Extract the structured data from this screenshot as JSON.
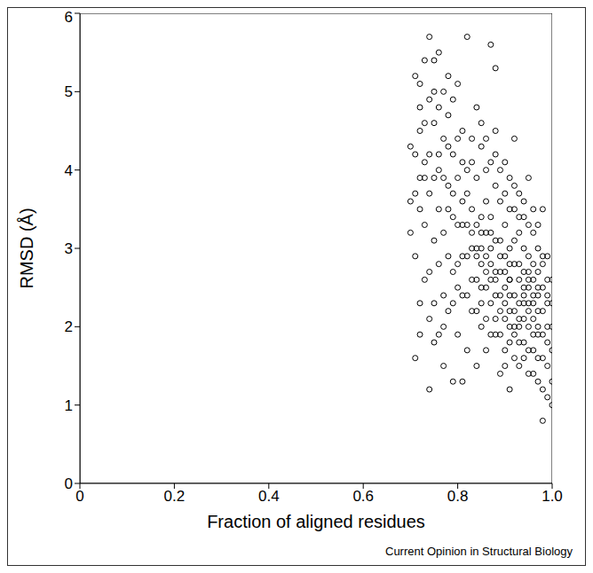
{
  "chart_data": {
    "type": "scatter",
    "xlabel": "Fraction of aligned residues",
    "ylabel": "RMSD (Å)",
    "annotation": "Current Opinion in Structural Biology",
    "color": "#000000",
    "marker": "open_circle",
    "grid": false,
    "xlim": [
      0,
      1
    ],
    "xticks": [
      0,
      0.2,
      0.4,
      0.6,
      0.8,
      {
        "value": 1,
        "label": "1.0"
      }
    ],
    "ylim": [
      0,
      6
    ],
    "yticks": [
      0,
      1,
      2,
      3,
      4,
      5,
      6
    ],
    "x": [
      0.7,
      0.7,
      0.71,
      0.71,
      0.71,
      0.72,
      0.72,
      0.72,
      0.72,
      0.73,
      0.73,
      0.73,
      0.73,
      0.74,
      0.74,
      0.74,
      0.74,
      0.75,
      0.75,
      0.75,
      0.75,
      0.76,
      0.76,
      0.76,
      0.76,
      0.77,
      0.77,
      0.77,
      0.77,
      0.78,
      0.78,
      0.78,
      0.78,
      0.79,
      0.79,
      0.79,
      0.79,
      0.8,
      0.8,
      0.8,
      0.8,
      0.81,
      0.81,
      0.81,
      0.81,
      0.82,
      0.82,
      0.82,
      0.82,
      0.83,
      0.83,
      0.83,
      0.83,
      0.84,
      0.84,
      0.84,
      0.84,
      0.85,
      0.85,
      0.85,
      0.85,
      0.86,
      0.86,
      0.86,
      0.86,
      0.87,
      0.87,
      0.87,
      0.87,
      0.88,
      0.88,
      0.88,
      0.88,
      0.88,
      0.89,
      0.89,
      0.89,
      0.89,
      0.9,
      0.9,
      0.9,
      0.9,
      0.9,
      0.91,
      0.91,
      0.91,
      0.91,
      0.91,
      0.92,
      0.92,
      0.92,
      0.92,
      0.92,
      0.93,
      0.93,
      0.93,
      0.93,
      0.93,
      0.94,
      0.94,
      0.94,
      0.94,
      0.94,
      0.95,
      0.95,
      0.95,
      0.95,
      0.95,
      0.96,
      0.96,
      0.96,
      0.96,
      0.97,
      0.97,
      0.97,
      0.97,
      0.98,
      0.98,
      0.98,
      0.98,
      0.99,
      0.99,
      0.99,
      1.0,
      1.0,
      1.0,
      1.0,
      0.99,
      0.98,
      0.97,
      0.84,
      0.85,
      0.86,
      0.87,
      0.88,
      0.89,
      0.9,
      0.91,
      0.92,
      0.93,
      0.94,
      0.95,
      0.96,
      0.97,
      0.98,
      0.99,
      0.9,
      0.91,
      0.92,
      0.93,
      0.94,
      0.95,
      0.96,
      0.97,
      0.89,
      0.88,
      0.87,
      0.86,
      0.85,
      0.84,
      0.83,
      0.82,
      0.81,
      0.8,
      0.79,
      0.78,
      0.77,
      0.76,
      0.75,
      0.74,
      0.73,
      0.72,
      0.71,
      0.7,
      0.71,
      0.72,
      0.73,
      0.74,
      0.75,
      0.76,
      0.77,
      0.78,
      0.79,
      0.8,
      0.81,
      0.82,
      0.83,
      0.84,
      0.85,
      0.86,
      0.87,
      0.88,
      0.89,
      0.9,
      0.91,
      0.92,
      0.93,
      0.94,
      0.95,
      0.96,
      0.97,
      0.98,
      0.99,
      1.0,
      0.99,
      0.98,
      0.97,
      0.96,
      0.95,
      0.94,
      0.93,
      0.92,
      0.91,
      0.9,
      0.89,
      0.88,
      0.87,
      0.86,
      0.85,
      0.83,
      0.82,
      0.81,
      0.8,
      0.79,
      0.78,
      0.77,
      0.76,
      0.75,
      0.74,
      0.72,
      0.91,
      0.92,
      0.93,
      0.94,
      0.95,
      0.96,
      0.9,
      0.91,
      0.89,
      0.88,
      0.87,
      0.86,
      0.85,
      0.84,
      0.95,
      0.96,
      0.97,
      0.98,
      0.99,
      1.0
    ],
    "values": [
      3.6,
      4.3,
      5.2,
      2.9,
      1.6,
      3.9,
      4.8,
      2.3,
      1.9,
      5.4,
      3.3,
      4.1,
      2.6,
      5.7,
      1.2,
      3.7,
      2.1,
      4.6,
      5.0,
      3.1,
      1.8,
      2.8,
      4.0,
      5.5,
      3.5,
      1.5,
      4.4,
      2.4,
      3.2,
      5.2,
      3.8,
      2.2,
      4.7,
      1.3,
      3.4,
      2.7,
      4.2,
      5.1,
      3.9,
      2.5,
      1.9,
      1.3,
      3.3,
      4.5,
      2.9,
      5.7,
      3.7,
      2.4,
      1.7,
      4.1,
      3.0,
      2.6,
      3.5,
      4.8,
      2.2,
      3.9,
      1.5,
      3.2,
      2.8,
      4.3,
      2.0,
      3.6,
      2.5,
      1.7,
      4.0,
      3.0,
      5.6,
      2.3,
      3.4,
      5.3,
      2.7,
      1.9,
      3.8,
      4.5,
      2.4,
      3.1,
      1.4,
      3.6,
      2.9,
      2.1,
      4.1,
      3.3,
      1.7,
      2.6,
      3.9,
      2.2,
      3.0,
      1.2,
      2.8,
      3.5,
      2.4,
      1.9,
      4.4,
      3.2,
      2.6,
      2.0,
      3.7,
      1.5,
      2.3,
      3.0,
      2.7,
      1.8,
      3.4,
      2.2,
      2.9,
      1.4,
      3.9,
      2.5,
      2.1,
      3.2,
      1.7,
      2.6,
      2.4,
      3.0,
      1.3,
      2.0,
      2.8,
      0.8,
      3.5,
      1.9,
      2.3,
      1.5,
      2.9,
      1.3,
      2.0,
      2.6,
      1.0,
      1.1,
      1.2,
      1.6,
      3.0,
      2.5,
      2.9,
      2.6,
      3.1,
      2.7,
      2.5,
      2.8,
      3.1,
      2.8,
      2.5,
      2.7,
      2.4,
      2.7,
      2.2,
      2.6,
      2.3,
      2.4,
      2.2,
      2.3,
      2.1,
      2.0,
      1.9,
      2.2,
      2.2,
      2.4,
      2.8,
      3.2,
      3.4,
      3.3,
      3.2,
      3.3,
      3.6,
      3.3,
      3.7,
      3.5,
      3.9,
      4.2,
      3.9,
      4.2,
      3.9,
      3.5,
      4.2,
      3.2,
      3.7,
      4.5,
      4.6,
      2.7,
      2.3,
      1.9,
      2.0,
      2.9,
      2.3,
      2.8,
      2.4,
      2.9,
      2.2,
      2.6,
      2.3,
      2.1,
      1.9,
      2.1,
      1.9,
      1.5,
      1.8,
      1.6,
      1.8,
      1.6,
      1.7,
      1.4,
      1.9,
      1.6,
      1.8,
      1.7,
      2.0,
      2.5,
      3.3,
      3.5,
      3.3,
      3.6,
      3.4,
      3.8,
      3.5,
      3.7,
      4.0,
      4.2,
      4.1,
      4.4,
      4.6,
      4.4,
      4.0,
      4.1,
      4.4,
      4.9,
      4.3,
      5.0,
      4.8,
      5.4,
      4.9,
      5.1,
      2.0,
      2.0,
      2.1,
      2.4,
      2.3,
      2.3,
      2.7,
      2.6,
      2.9,
      2.6,
      3.2,
      2.7,
      3.0,
      2.9,
      2.6,
      2.8,
      2.5,
      2.9,
      2.4,
      2.3
    ]
  }
}
